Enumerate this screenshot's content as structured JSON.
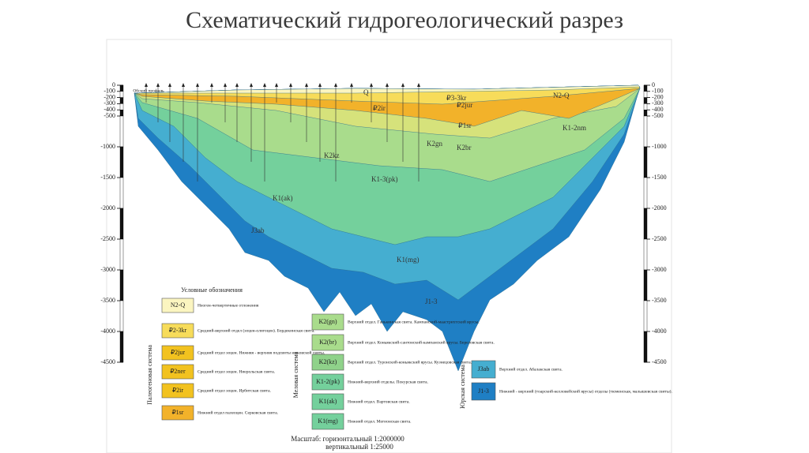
{
  "title": "Схематический гидрогеологический разрез",
  "profile_label": "Обский профиль",
  "depth_scale": [
    0,
    -100,
    -200,
    -300,
    -400,
    -500,
    -1000,
    -1500,
    -2000,
    -2500,
    -3000,
    -3500,
    -4000,
    -4500
  ],
  "layer_labels": [
    "N2-Q",
    "Q",
    "₽3-3kr",
    "₽2jur",
    "₽1sr",
    "₽2ir",
    "K2kz",
    "K2gn",
    "K2br",
    "K1-3(pk)",
    "K1(ak)",
    "J3ab",
    "K1(mg)",
    "J1-3",
    "K1-2nm"
  ],
  "legend": {
    "heading": "Условные обозначения",
    "paleogene_system": "Палеогеновая система",
    "cretaceous_system": "Меловая система",
    "jurassic_system": "Юрская система",
    "paleogene": [
      {
        "code": "N2-Q",
        "text": "Неоген-четвертичные отложения"
      },
      {
        "code": "₽2-3kr",
        "text": "Средний-верхний отдел (эоцен-олигоцен). Бордекинская свита."
      },
      {
        "code": "₽2jur",
        "text": "Средний отдел эоцен. Нижняя - верхняя подсвиты юрковской свиты."
      },
      {
        "code": "₽2ner",
        "text": "Средний отдел эоцен. Ниерольская свита."
      },
      {
        "code": "₽2ir",
        "text": "Средний отдел эоцен. Ирбитская свита."
      },
      {
        "code": "₽1sr",
        "text": "Нижний отдел палеоцен. Серковская свита."
      }
    ],
    "cretaceous": [
      {
        "code": "K2(gn)",
        "text": "Верхний отдел. Ганькинская свита. Кампанский-маастрихтский ярусы."
      },
      {
        "code": "K2(br)",
        "text": "Верхний отдел. Коньякский-сантонский-кампанский ярусы. Березовская свита."
      },
      {
        "code": "K2(kz)",
        "text": "Верхний отдел. Туронский-коньякский ярусы. Кузнецовская свита."
      },
      {
        "code": "K1-2(pk)",
        "text": "Нижний-верхний отделы. Покурская свита."
      },
      {
        "code": "K1(ak)",
        "text": "Нижний отдел. Вартовская свита."
      },
      {
        "code": "K1(mg)",
        "text": "Нижний отдел. Мегионская свита."
      }
    ],
    "jurassic": [
      {
        "code": "J3ab",
        "text": "Верхний отдел. Абалакская свита."
      },
      {
        "code": "J1-3",
        "text": "Нижний - верхний (тоарский-келловейский ярусы) отделы (тюменская, малышевская свиты)."
      }
    ],
    "scale_horizontal": "Масштаб: горизонтальный 1:2000000",
    "scale_vertical": "вертикальный 1:25000"
  }
}
